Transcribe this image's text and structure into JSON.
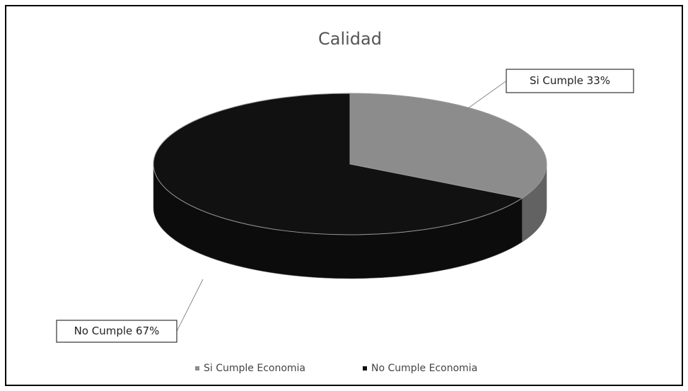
{
  "chart_data": {
    "type": "pie",
    "title": "Calidad",
    "categories": [
      "Si Cumple Economia",
      "No Cumple Economia"
    ],
    "values": [
      33,
      67
    ],
    "value_labels": [
      "Si Cumple 33%",
      "No Cumple 67%"
    ],
    "colors": [
      "#8c8c8c",
      "#111111"
    ],
    "legend": "bottom"
  }
}
